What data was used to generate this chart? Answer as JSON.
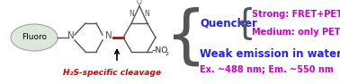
{
  "bg_color": "#ffffff",
  "h2s_text": "H₂S-specific cleavage",
  "h2s_color": "#dd0000",
  "h2s_fontsize": 6.5,
  "quencher_text": "Quencher",
  "quencher_color": "#2222ee",
  "quencher_fontsize": 8.5,
  "strong_text": "Strong: FRET+PET",
  "strong_color": "#cc00cc",
  "strong_fontsize": 7.0,
  "medium_text": "Medium: only PET",
  "medium_color": "#cc00cc",
  "medium_fontsize": 7.0,
  "weak_text": "Weak emission in water",
  "weak_color": "#2222ee",
  "weak_fontsize": 8.5,
  "excitation_text": "Ex. ~488 nm; Em. ~550 nm",
  "excitation_color": "#cc00cc",
  "excitation_fontsize": 7.0,
  "bond_color_red": "#cc0000",
  "bond_color_gray": "#555555",
  "brace_color": "#555555"
}
